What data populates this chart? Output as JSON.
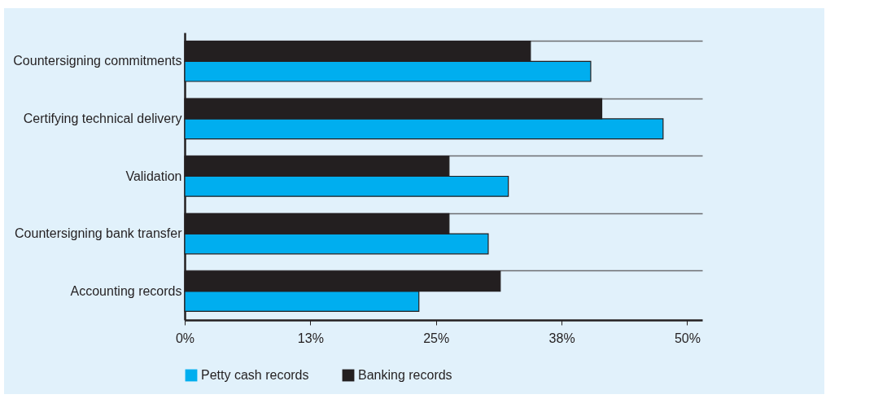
{
  "chart_data": {
    "type": "bar",
    "orientation": "horizontal",
    "categories": [
      "Countersigning commitments",
      "Certifying  technical delivery",
      "Validation",
      "Countersigning bank transfer",
      "Accounting records"
    ],
    "series": [
      {
        "name": "Petty cash records",
        "color": "#00aeef",
        "values": [
          40.4,
          47.6,
          32.2,
          30.2,
          23.3
        ]
      },
      {
        "name": "Banking records",
        "color": "#231f20",
        "values": [
          34.4,
          41.5,
          26.3,
          26.3,
          31.4
        ]
      }
    ],
    "xlim": [
      0,
      51.5
    ],
    "xticks": [
      {
        "value": 0,
        "label": "0%"
      },
      {
        "value": 12.5,
        "label": "13%"
      },
      {
        "value": 25,
        "label": "25%"
      },
      {
        "value": 37.5,
        "label": "38%"
      },
      {
        "value": 50,
        "label": "50%"
      }
    ],
    "grid": "y",
    "legend": "bottom"
  }
}
